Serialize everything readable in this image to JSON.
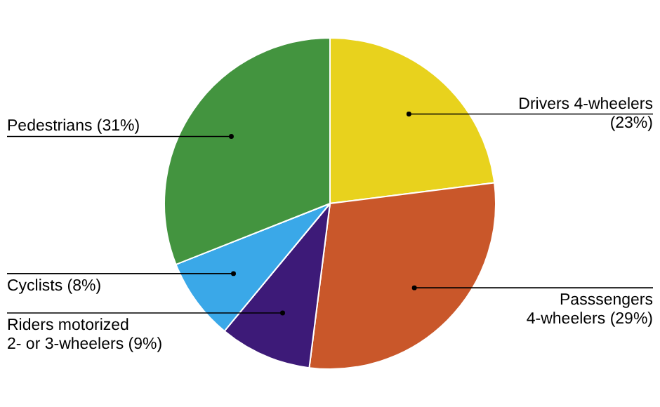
{
  "chart_data": {
    "type": "pie",
    "categories": [
      "Drivers 4-wheelers",
      "Passsengers 4-wheelers",
      "Riders motorized 2- or 3-wheelers",
      "Cyclists",
      "Pedestrians"
    ],
    "values": [
      23,
      29,
      9,
      8,
      31
    ],
    "value_labels": [
      "(23%)",
      "(29%)",
      "(9%)",
      "(8%)",
      "(31%)"
    ],
    "colors": [
      "#e8d21d",
      "#c9572a",
      "#3d1a78",
      "#3aa8e8",
      "#43943f"
    ]
  }
}
